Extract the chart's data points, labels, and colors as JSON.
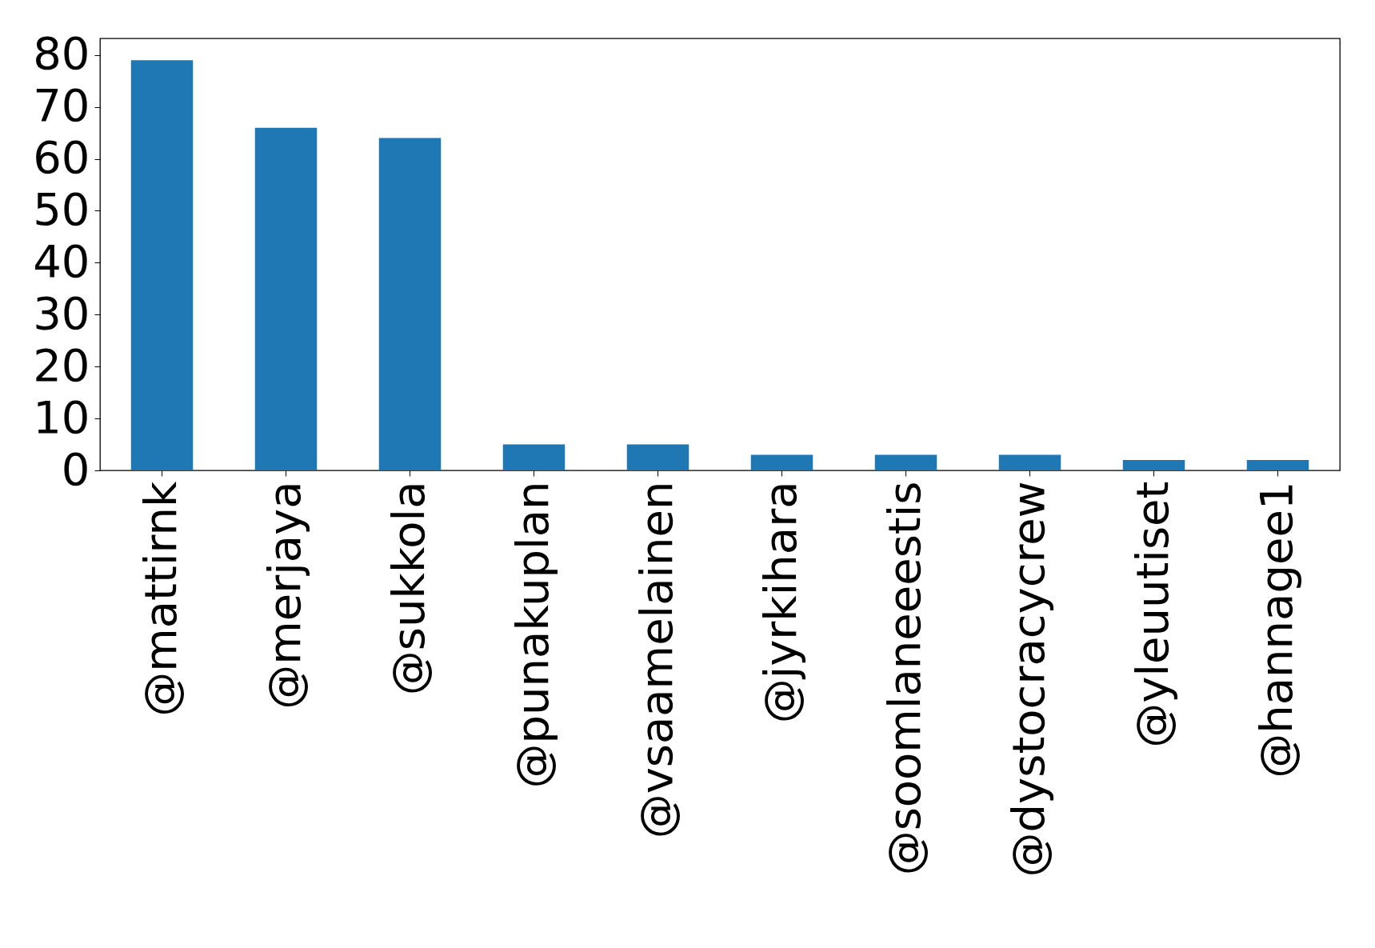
{
  "chart_data": {
    "type": "bar",
    "categories": [
      "@mattirnk",
      "@merjaya",
      "@sukkola",
      "@punakuplan",
      "@vsaamelainen",
      "@jyrkihara",
      "@soomlaneeestis",
      "@dystocracycrew",
      "@yleuutiset",
      "@hannagee1"
    ],
    "values": [
      79,
      66,
      64,
      5,
      5,
      3,
      3,
      3,
      2,
      2
    ],
    "color": "#1f77b4",
    "ylim": [
      0,
      83.2
    ],
    "yticks": [
      0,
      10,
      20,
      30,
      40,
      50,
      60,
      70,
      80
    ],
    "grid": false
  }
}
